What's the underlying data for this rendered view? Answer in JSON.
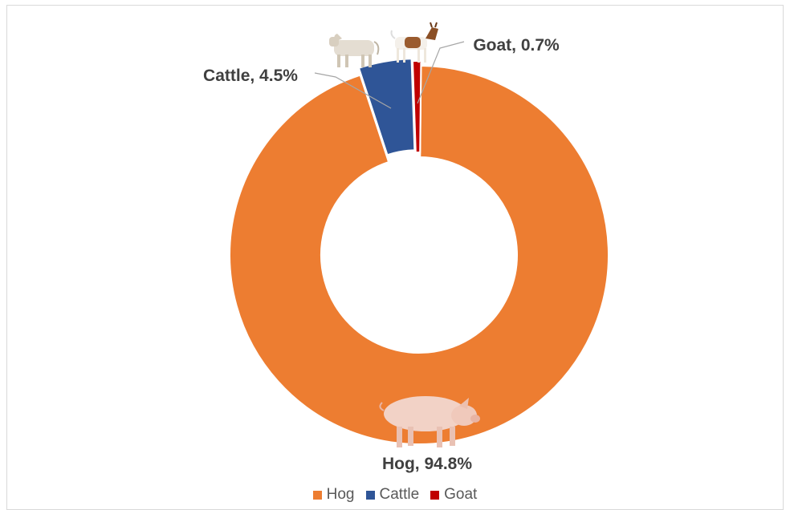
{
  "chart_data": {
    "type": "pie",
    "style": "donut",
    "categories": [
      "Hog",
      "Cattle",
      "Goat"
    ],
    "values": [
      94.8,
      4.5,
      0.7
    ],
    "data_labels": [
      "Hog, 94.8%",
      "Cattle, 4.5%",
      "Goat, 0.7%"
    ],
    "colors": [
      "#ed7d31",
      "#2f5597",
      "#c00000"
    ],
    "exploded": [
      "Cattle",
      "Goat"
    ],
    "title": "",
    "legend": {
      "position": "bottom",
      "entries": [
        "Hog",
        "Cattle",
        "Goat"
      ]
    },
    "images": [
      "pig",
      "cow",
      "goat"
    ]
  }
}
